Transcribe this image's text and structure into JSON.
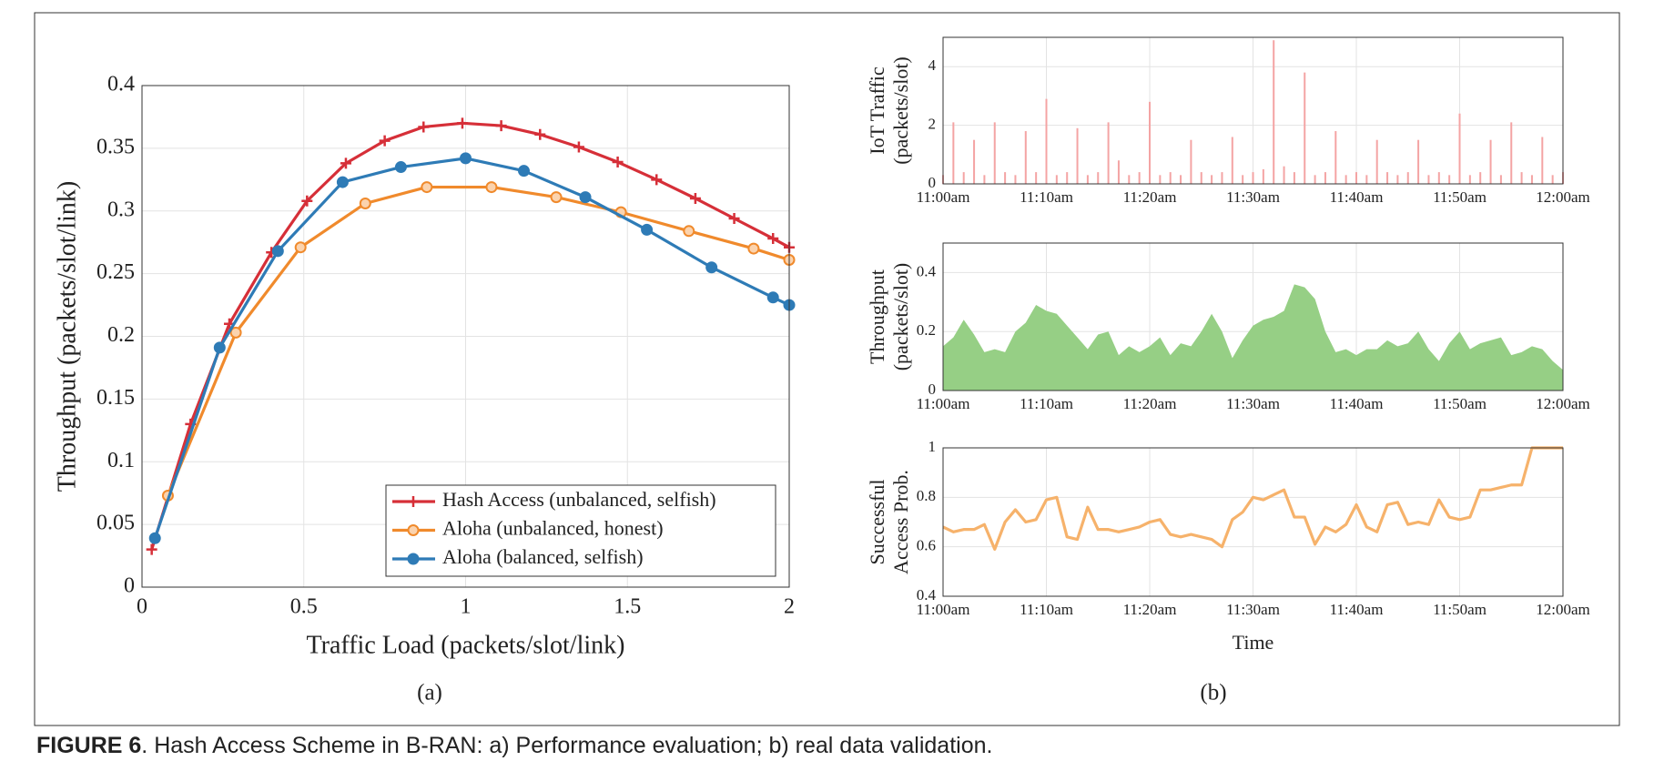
{
  "chart_data": [
    {
      "type": "line",
      "xlabel": "Traffic Load (packets/slot/link)",
      "ylabel": [
        "Throughput (packets/slot/link)"
      ],
      "xlim": [
        0,
        2
      ],
      "ylim": [
        0,
        0.4
      ],
      "xticks": [
        0,
        0.5,
        1,
        1.5,
        2
      ],
      "yticks": [
        0,
        0.05,
        0.1,
        0.15,
        0.2,
        0.25,
        0.3,
        0.35,
        0.4
      ],
      "grid": true,
      "legend": "lower right",
      "series": [
        {
          "name": "Hash Access (unbalanced, selfish)",
          "color": "#d62f38",
          "marker": "plus",
          "x": [
            0.03,
            0.15,
            0.27,
            0.4,
            0.51,
            0.63,
            0.75,
            0.87,
            0.99,
            1.11,
            1.23,
            1.35,
            1.47,
            1.59,
            1.71,
            1.83,
            1.95,
            2.0
          ],
          "values": [
            0.03,
            0.13,
            0.21,
            0.267,
            0.308,
            0.338,
            0.356,
            0.367,
            0.37,
            0.368,
            0.361,
            0.351,
            0.339,
            0.325,
            0.31,
            0.294,
            0.278,
            0.271
          ]
        },
        {
          "name": "Aloha (unbalanced, honest)",
          "color": "#f08a2c",
          "marker": "circle-open",
          "x": [
            0.08,
            0.29,
            0.49,
            0.69,
            0.88,
            1.08,
            1.28,
            1.48,
            1.69,
            1.89,
            2.0
          ],
          "values": [
            0.073,
            0.203,
            0.271,
            0.306,
            0.319,
            0.319,
            0.311,
            0.299,
            0.284,
            0.27,
            0.261
          ]
        },
        {
          "name": "Aloha (balanced, selfish)",
          "color": "#2e7bb6",
          "marker": "circle",
          "x": [
            0.04,
            0.24,
            0.42,
            0.62,
            0.8,
            1.0,
            1.18,
            1.37,
            1.56,
            1.76,
            1.95,
            2.0
          ],
          "values": [
            0.039,
            0.191,
            0.268,
            0.323,
            0.335,
            0.342,
            0.332,
            0.311,
            0.285,
            0.255,
            0.231,
            0.225
          ]
        }
      ]
    },
    {
      "type": "bar",
      "ylabel": [
        "IoT Traffic",
        "(packets/slot)"
      ],
      "color": "#f4a4a4",
      "grid": true,
      "xlim": [
        0,
        60
      ],
      "ylim": [
        0,
        5
      ],
      "yticks": [
        0,
        2,
        4
      ],
      "xticks": [
        {
          "value": 0,
          "label": "11:00am"
        },
        {
          "value": 10,
          "label": "11:10am"
        },
        {
          "value": 20,
          "label": "11:20am"
        },
        {
          "value": 30,
          "label": "11:30am"
        },
        {
          "value": 40,
          "label": "11:40am"
        },
        {
          "value": 50,
          "label": "11:50am"
        },
        {
          "value": 60,
          "label": "12:00am"
        }
      ],
      "x": [
        0,
        1,
        2,
        3,
        4,
        5,
        6,
        7,
        8,
        9,
        10,
        11,
        12,
        13,
        14,
        15,
        16,
        17,
        18,
        19,
        20,
        21,
        22,
        23,
        24,
        25,
        26,
        27,
        28,
        29,
        30,
        31,
        32,
        33,
        34,
        35,
        36,
        37,
        38,
        39,
        40,
        41,
        42,
        43,
        44,
        45,
        46,
        47,
        48,
        49,
        50,
        51,
        52,
        53,
        54,
        55,
        56,
        57,
        58,
        59,
        60
      ],
      "values": [
        0.3,
        2.1,
        0.4,
        1.5,
        0.3,
        2.1,
        0.4,
        0.3,
        1.8,
        0.4,
        2.9,
        0.3,
        0.4,
        1.9,
        0.3,
        0.4,
        2.1,
        0.8,
        0.3,
        0.4,
        2.8,
        0.3,
        0.4,
        0.3,
        1.5,
        0.4,
        0.3,
        0.4,
        1.6,
        0.3,
        0.4,
        0.5,
        4.9,
        0.6,
        0.4,
        3.8,
        0.3,
        0.4,
        1.8,
        0.3,
        0.4,
        0.3,
        1.5,
        0.4,
        0.3,
        0.4,
        1.5,
        0.3,
        0.4,
        0.3,
        2.4,
        0.3,
        0.4,
        1.5,
        0.3,
        2.1,
        0.4,
        0.3,
        1.6,
        0.3,
        0.4
      ]
    },
    {
      "type": "area",
      "ylabel": [
        "Throughput",
        "(packets/slot)"
      ],
      "color": "#96cf85",
      "grid": true,
      "xlim": [
        0,
        60
      ],
      "ylim": [
        0,
        0.5
      ],
      "yticks": [
        0,
        0.2,
        0.4
      ],
      "xticks": [
        {
          "value": 0,
          "label": "11:00am"
        },
        {
          "value": 10,
          "label": "11:10am"
        },
        {
          "value": 20,
          "label": "11:20am"
        },
        {
          "value": 30,
          "label": "11:30am"
        },
        {
          "value": 40,
          "label": "11:40am"
        },
        {
          "value": 50,
          "label": "11:50am"
        },
        {
          "value": 60,
          "label": "12:00am"
        }
      ],
      "x": [
        0,
        1,
        2,
        3,
        4,
        5,
        6,
        7,
        8,
        9,
        10,
        11,
        12,
        13,
        14,
        15,
        16,
        17,
        18,
        19,
        20,
        21,
        22,
        23,
        24,
        25,
        26,
        27,
        28,
        29,
        30,
        31,
        32,
        33,
        34,
        35,
        36,
        37,
        38,
        39,
        40,
        41,
        42,
        43,
        44,
        45,
        46,
        47,
        48,
        49,
        50,
        51,
        52,
        53,
        54,
        55,
        56,
        57,
        58,
        59,
        60
      ],
      "values": [
        0.15,
        0.18,
        0.24,
        0.19,
        0.13,
        0.14,
        0.13,
        0.2,
        0.23,
        0.29,
        0.27,
        0.26,
        0.22,
        0.18,
        0.14,
        0.19,
        0.2,
        0.12,
        0.15,
        0.13,
        0.15,
        0.18,
        0.12,
        0.16,
        0.15,
        0.2,
        0.26,
        0.2,
        0.11,
        0.17,
        0.22,
        0.24,
        0.25,
        0.27,
        0.36,
        0.35,
        0.31,
        0.2,
        0.13,
        0.14,
        0.12,
        0.14,
        0.14,
        0.17,
        0.15,
        0.16,
        0.2,
        0.14,
        0.1,
        0.16,
        0.2,
        0.14,
        0.16,
        0.17,
        0.18,
        0.12,
        0.13,
        0.15,
        0.14,
        0.1,
        0.07
      ]
    },
    {
      "type": "line",
      "ylabel": [
        "Successful",
        "Access Prob."
      ],
      "xlabel": "Time",
      "grid": true,
      "xlim": [
        0,
        60
      ],
      "ylim": [
        0.4,
        1
      ],
      "yticks": [
        0.4,
        0.6,
        0.8,
        1
      ],
      "xticks": [
        {
          "value": 0,
          "label": "11:00am"
        },
        {
          "value": 10,
          "label": "11:10am"
        },
        {
          "value": 20,
          "label": "11:20am"
        },
        {
          "value": 30,
          "label": "11:30am"
        },
        {
          "value": 40,
          "label": "11:40am"
        },
        {
          "value": 50,
          "label": "11:50am"
        },
        {
          "value": 60,
          "label": "12:00am"
        }
      ],
      "series": [
        {
          "color": "#f6b26b",
          "x": [
            0,
            1,
            2,
            3,
            4,
            5,
            6,
            7,
            8,
            9,
            10,
            11,
            12,
            13,
            14,
            15,
            16,
            17,
            18,
            19,
            20,
            21,
            22,
            23,
            24,
            25,
            26,
            27,
            28,
            29,
            30,
            31,
            32,
            33,
            34,
            35,
            36,
            37,
            38,
            39,
            40,
            41,
            42,
            43,
            44,
            45,
            46,
            47,
            48,
            49,
            50,
            51,
            52,
            53,
            54,
            55,
            56,
            57,
            58,
            59,
            60
          ],
          "values": [
            0.68,
            0.66,
            0.67,
            0.67,
            0.69,
            0.59,
            0.7,
            0.75,
            0.7,
            0.71,
            0.79,
            0.8,
            0.64,
            0.63,
            0.76,
            0.67,
            0.67,
            0.66,
            0.67,
            0.68,
            0.7,
            0.71,
            0.65,
            0.64,
            0.65,
            0.64,
            0.63,
            0.6,
            0.71,
            0.74,
            0.8,
            0.79,
            0.81,
            0.83,
            0.72,
            0.72,
            0.61,
            0.68,
            0.66,
            0.69,
            0.77,
            0.68,
            0.66,
            0.77,
            0.78,
            0.69,
            0.7,
            0.69,
            0.79,
            0.72,
            0.71,
            0.72,
            0.83,
            0.83,
            0.84,
            0.85,
            0.85,
            1,
            1,
            1,
            1
          ]
        }
      ]
    }
  ],
  "panel_labels": [
    "(a)",
    "(b)"
  ],
  "caption": {
    "label": "FIGURE 6",
    "text": ". Hash Access Scheme in B-RAN: a) Performance evaluation; b) real data validation."
  }
}
